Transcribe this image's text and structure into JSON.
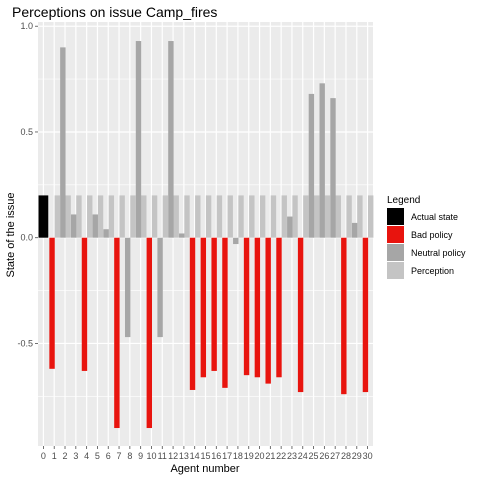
{
  "chart_data": {
    "type": "bar",
    "title": "Perceptions on issue Camp_fires",
    "xlabel": "Agent number",
    "ylabel": "State of the issue",
    "ylim": [
      -0.985,
      1.02
    ],
    "yticks": [
      -0.5,
      0.0,
      0.5,
      1.0
    ],
    "ytick_labels": [
      "-0.5",
      "0.0",
      "0.5",
      "1.0"
    ],
    "grid": true,
    "legend": {
      "title": "Legend",
      "position": "right",
      "entries": [
        {
          "key": "actual",
          "label": "Actual state",
          "color": "#000000"
        },
        {
          "key": "bad",
          "label": "Bad policy",
          "color": "#e8140e"
        },
        {
          "key": "neutral",
          "label": "Neutral policy",
          "color": "#a6a6a6"
        },
        {
          "key": "perception",
          "label": "Perception",
          "color": "#c4c4c4"
        }
      ]
    },
    "categories": [
      "0",
      "1",
      "2",
      "3",
      "4",
      "5",
      "6",
      "7",
      "8",
      "9",
      "10",
      "11",
      "12",
      "13",
      "14",
      "15",
      "16",
      "17",
      "18",
      "19",
      "20",
      "21",
      "22",
      "23",
      "24",
      "25",
      "26",
      "27",
      "28",
      "29",
      "30"
    ],
    "series": [
      {
        "key": "actual",
        "values": [
          0.2,
          null,
          null,
          null,
          null,
          null,
          null,
          null,
          null,
          null,
          null,
          null,
          null,
          null,
          null,
          null,
          null,
          null,
          null,
          null,
          null,
          null,
          null,
          null,
          null,
          null,
          null,
          null,
          null,
          null,
          null
        ]
      },
      {
        "key": "bad",
        "values": [
          null,
          -0.62,
          null,
          null,
          -0.63,
          null,
          null,
          -0.9,
          null,
          null,
          -0.9,
          null,
          null,
          null,
          -0.72,
          -0.66,
          -0.63,
          -0.71,
          null,
          -0.65,
          -0.66,
          -0.69,
          -0.66,
          null,
          -0.73,
          null,
          null,
          null,
          -0.74,
          null,
          -0.73
        ]
      },
      {
        "key": "neutral",
        "values": [
          null,
          null,
          0.9,
          0.11,
          null,
          0.11,
          0.04,
          null,
          -0.47,
          0.93,
          null,
          -0.47,
          0.93,
          0.02,
          null,
          null,
          null,
          null,
          -0.03,
          null,
          null,
          null,
          null,
          0.1,
          null,
          0.68,
          0.73,
          0.66,
          null,
          0.07,
          null
        ]
      },
      {
        "key": "perception",
        "values": [
          null,
          0.2,
          0.2,
          0.2,
          0.2,
          0.2,
          0.2,
          0.2,
          0.2,
          0.2,
          0.2,
          0.2,
          0.2,
          0.2,
          0.2,
          0.2,
          0.2,
          0.2,
          0.2,
          0.2,
          0.2,
          0.2,
          0.2,
          0.2,
          0.2,
          0.2,
          0.2,
          0.2,
          0.2,
          0.2,
          0.2
        ]
      }
    ]
  }
}
